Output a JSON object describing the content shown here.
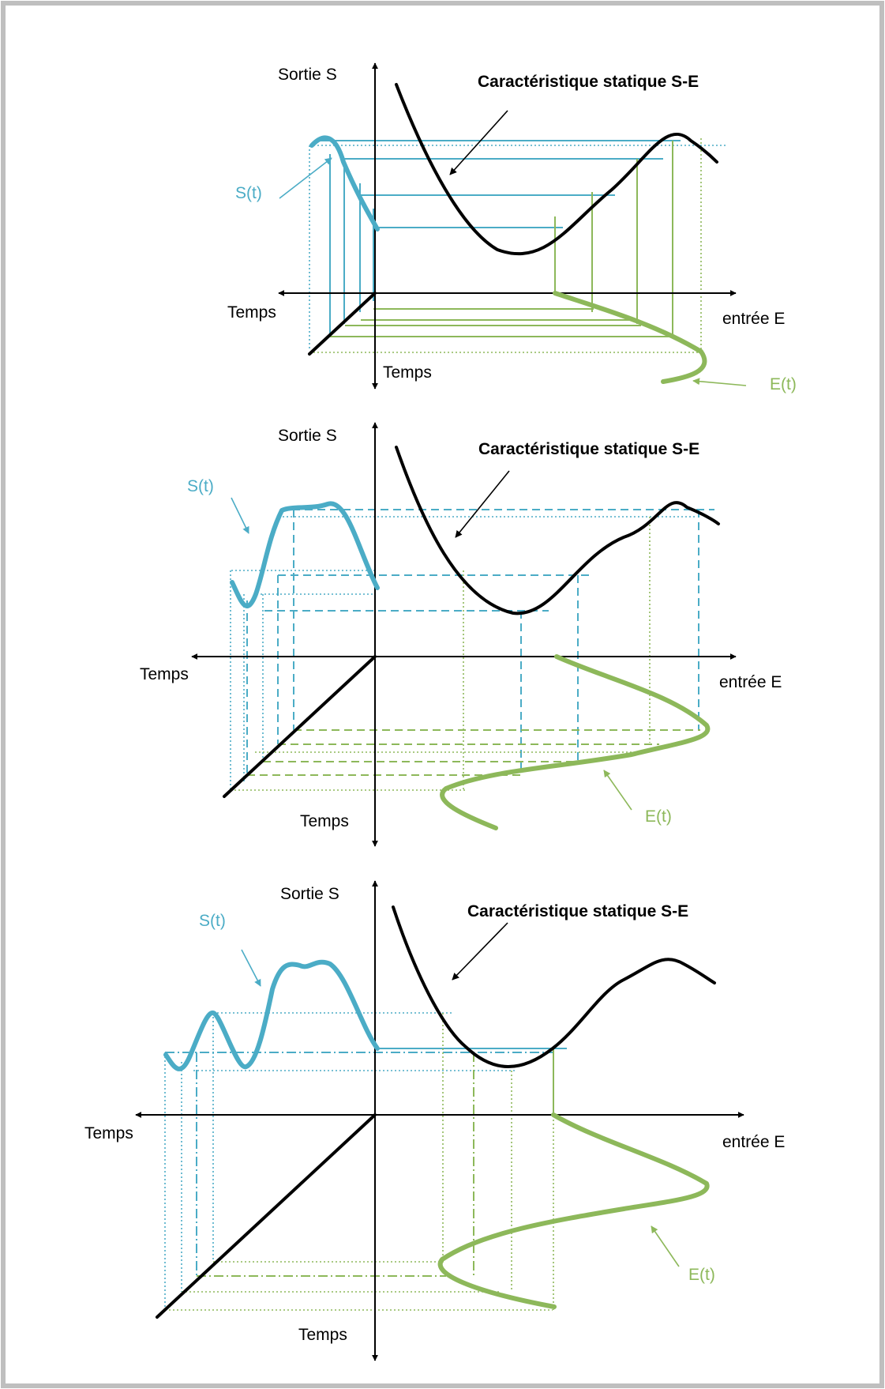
{
  "colors": {
    "output_signal": "#4BACC6",
    "input_signal": "#8DB85A",
    "characteristic": "#000000",
    "border": "#BFBFBF"
  },
  "panels": [
    {
      "output_axis_label": "Sortie S",
      "characteristic_label": "Caractéristique statique S-E",
      "output_signal_label": "S(t)",
      "input_signal_label": "E(t)",
      "time_axis_left_label": "Temps",
      "time_axis_bottom_label": "Temps",
      "input_axis_label": "entrée E"
    },
    {
      "output_axis_label": "Sortie S",
      "characteristic_label": "Caractéristique statique S-E",
      "output_signal_label": "S(t)",
      "input_signal_label": "E(t)",
      "time_axis_left_label": "Temps",
      "time_axis_bottom_label": "Temps",
      "input_axis_label": "entrée E"
    },
    {
      "output_axis_label": "Sortie S",
      "characteristic_label": "Caractéristique statique S-E",
      "output_signal_label": "S(t)",
      "input_signal_label": "E(t)",
      "time_axis_left_label": "Temps",
      "time_axis_bottom_label": "Temps",
      "input_axis_label": "entrée E"
    }
  ]
}
